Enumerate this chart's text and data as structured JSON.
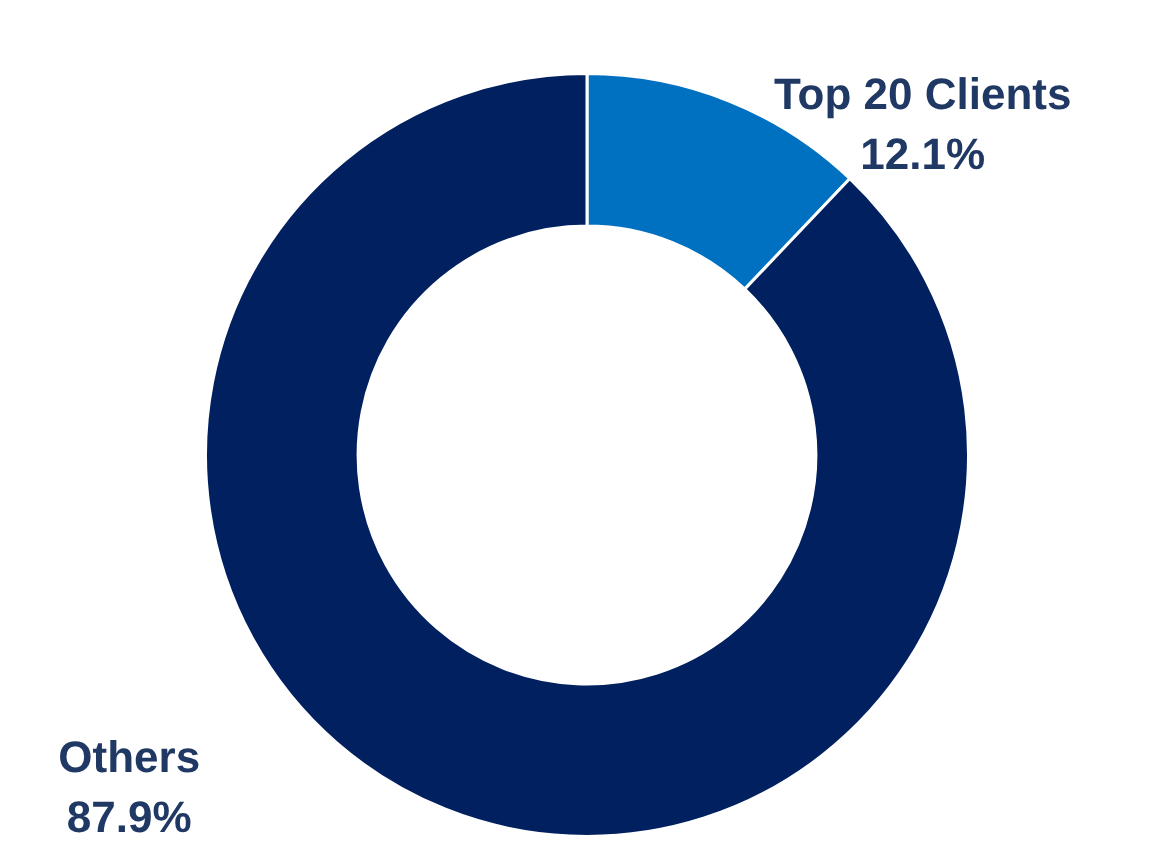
{
  "chart_data": {
    "type": "donut",
    "categories": [
      "Top 20 Clients",
      "Others"
    ],
    "values": [
      12.1,
      87.9
    ],
    "colors": [
      "#0070c0",
      "#002060"
    ],
    "value_labels": [
      "12.1%",
      "87.9%"
    ],
    "legend": false
  }
}
